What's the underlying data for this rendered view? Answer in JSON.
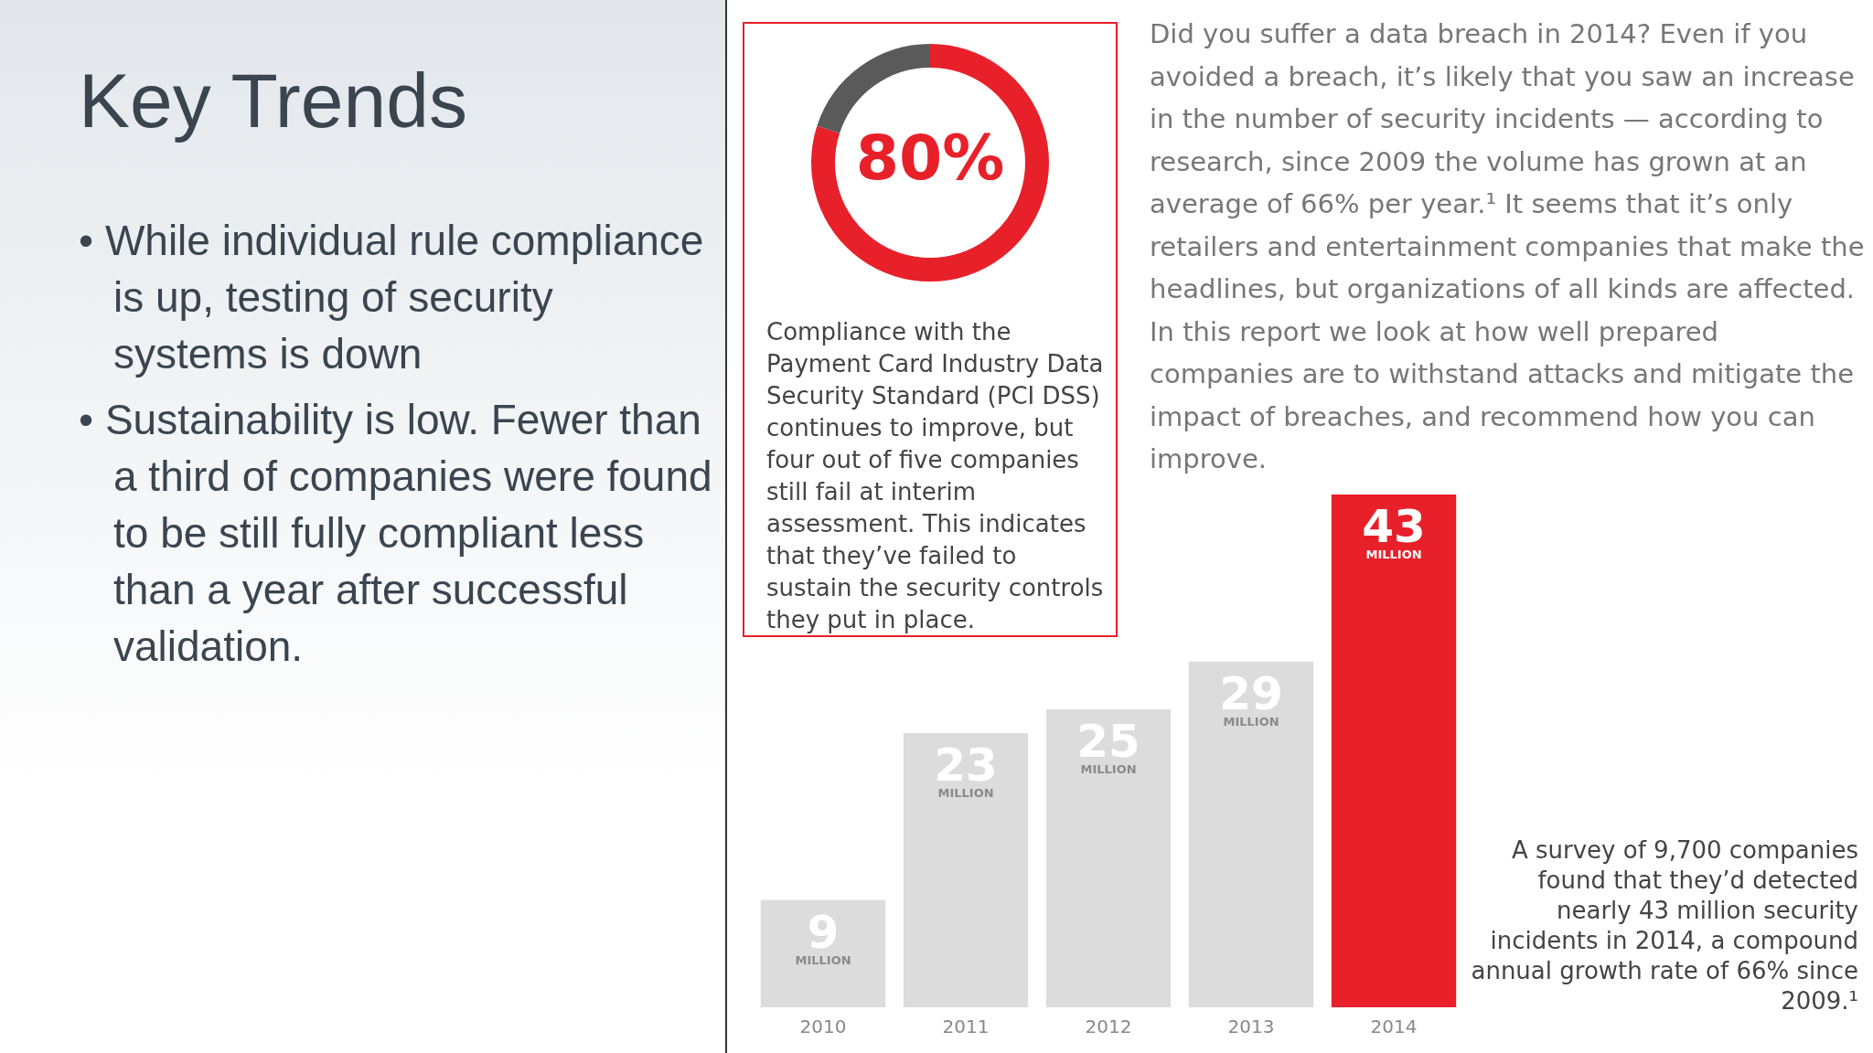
{
  "chart_data": [
    {
      "type": "other",
      "title": "Key Trends",
      "annotations": [
        "• While individual rule compliance is up, testing of security systems is down",
        "• Sustainability is low. Fewer than a third of companies were found to be still fully compliant less than a year after successful validation."
      ]
    },
    {
      "type": "donut",
      "categories": [
        null,
        null
      ],
      "values": [
        80,
        20
      ],
      "colors": [
        "#e8202a",
        "#5a5a5a"
      ],
      "value_labels": [
        "80%",
        null
      ],
      "legend": false,
      "annotations": [
        "Compliance with the Payment Card Industry Data Security Standard (PCI DSS) continues to improve, but four out of five companies still fail at interim assessment. This indicates that they’ve failed to sustain the security controls they put in place."
      ]
    },
    {
      "type": "bar",
      "categories": [
        "2010",
        "2011",
        "2012",
        "2013",
        "2014"
      ],
      "values": [
        9,
        23,
        25,
        29,
        43
      ],
      "colors": [
        "#dcdcdc",
        "#dcdcdc",
        "#dcdcdc",
        "#dcdcdc",
        "#e8202a"
      ],
      "value_labels": [
        "9 MILLION",
        "23 MILLION",
        "25 MILLION",
        "29 MILLION",
        "43 MILLION"
      ],
      "tick_labels": "x",
      "grid": false,
      "legend": false,
      "annotations": [
        "Did you suffer a data breach in 2014? Even if you avoided a breach, it’s likely that you saw an increase in the number of security incidents — according to research, since 2009 the volume has grown at an average of 66% per year.¹ It seems that it’s only retailers and entertainment companies that make the headlines, but organizations of all kinds are affected. In this report we look at how well prepared companies are to withstand attacks and mitigate the impact of breaches, and recommend how you can improve.",
        "A survey of 9,700 companies found that they’d detected nearly 43 million security incidents in 2014, a compound annual growth rate of 66% since 2009.¹"
      ]
    }
  ]
}
